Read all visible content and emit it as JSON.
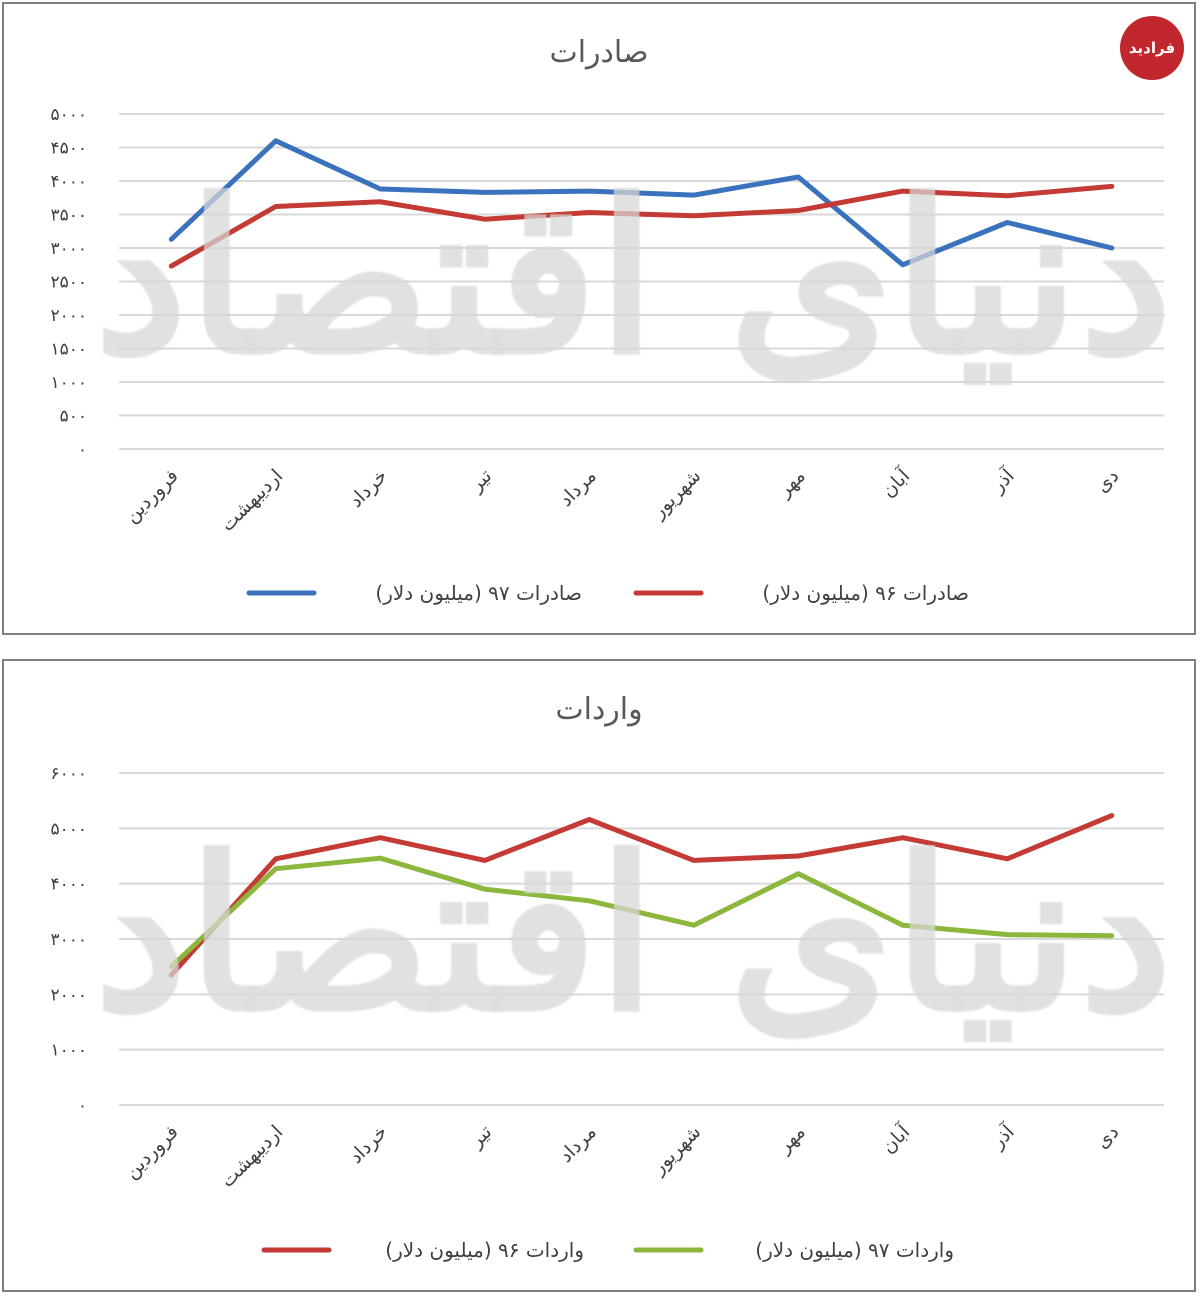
{
  "logo": {
    "text": "فرادید"
  },
  "watermark": {
    "text": "دنیای اقتصاد"
  },
  "chart_data": [
    {
      "type": "line",
      "title": "صادرات",
      "categories": [
        "فروردین",
        "اردیبهشت",
        "خرداد",
        "تیر",
        "مرداد",
        "شهریور",
        "مهر",
        "آبان",
        "آذر",
        "دی"
      ],
      "ylim": [
        0,
        5000
      ],
      "yticks": [
        0,
        500,
        1000,
        1500,
        2000,
        2500,
        3000,
        3500,
        4000,
        4500,
        5000
      ],
      "ytick_labels": [
        "۰",
        "۵۰۰",
        "۱۰۰۰",
        "۱۵۰۰",
        "۲۰۰۰",
        "۲۵۰۰",
        "۳۰۰۰",
        "۳۵۰۰",
        "۴۰۰۰",
        "۴۵۰۰",
        "۵۰۰۰"
      ],
      "grid": true,
      "legend_position": "bottom",
      "series": [
        {
          "name": "صادرات ۹۷ (میلیون دلار)",
          "color": "#3a72be",
          "values": [
            3130,
            4600,
            3880,
            3830,
            3850,
            3790,
            4060,
            2750,
            3380,
            3000
          ]
        },
        {
          "name": "صادرات ۹۶ (میلیون دلار)",
          "color": "#c43a34",
          "values": [
            2730,
            3620,
            3690,
            3430,
            3530,
            3480,
            3560,
            3850,
            3780,
            3920
          ]
        }
      ]
    },
    {
      "type": "line",
      "title": "واردات",
      "categories": [
        "فروردین",
        "اردیبهشت",
        "خرداد",
        "تیر",
        "مرداد",
        "شهریور",
        "مهر",
        "آبان",
        "آذر",
        "دی"
      ],
      "ylim": [
        0,
        6000
      ],
      "yticks": [
        0,
        1000,
        2000,
        3000,
        4000,
        5000,
        6000
      ],
      "ytick_labels": [
        "۰",
        "۱۰۰۰",
        "۲۰۰۰",
        "۳۰۰۰",
        "۴۰۰۰",
        "۵۰۰۰",
        "۶۰۰۰"
      ],
      "grid": true,
      "legend_position": "bottom",
      "series": [
        {
          "name": "واردات ۹۶ (میلیون دلار)",
          "color": "#c43a34",
          "values": [
            2350,
            4450,
            4830,
            4420,
            5160,
            4420,
            4500,
            4830,
            4450,
            5230
          ]
        },
        {
          "name": "واردات ۹۷ (میلیون دلار)",
          "color": "#8cb63c",
          "values": [
            2500,
            4270,
            4460,
            3900,
            3690,
            3250,
            4180,
            3250,
            3080,
            3060
          ]
        }
      ]
    }
  ]
}
